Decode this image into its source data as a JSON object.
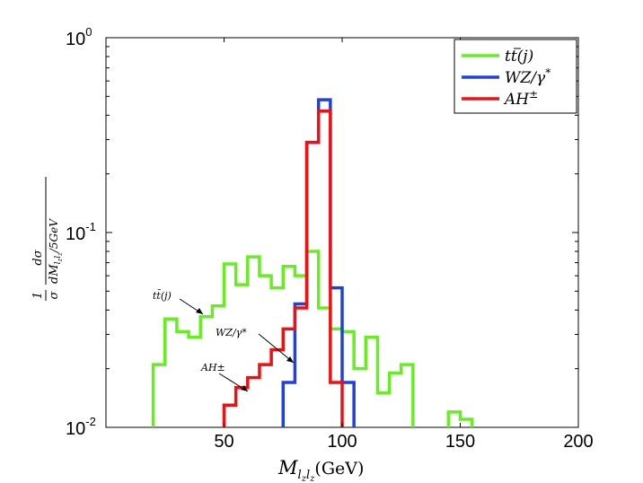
{
  "chart_data": {
    "type": "line",
    "style": "step-histogram",
    "xlabel": "M_{l_z l_z}(GeV)",
    "xlabel_main": "M",
    "xlabel_sub": "l",
    "xlabel_subsub": "z",
    "xlabel_sub2": "l",
    "xlabel_subsub2": "z",
    "xlabel_unit": "(GeV)",
    "ylabel": "1/σ dσ/dM_{l_z l_z}/5GeV",
    "ylabel_one": "1",
    "ylabel_sigma": "σ",
    "ylabel_num": "dσ",
    "ylabel_den": "dM",
    "ylabel_den_sub": "l",
    "ylabel_den_subsub": "z",
    "ylabel_den_sub2": "l",
    "ylabel_den_subsub2": "z",
    "ylabel_den_tail": "/5GeV",
    "xlim": [
      0,
      200
    ],
    "ylim": [
      0.01,
      1
    ],
    "yscale": "log",
    "x_ticks": [
      {
        "value": 50,
        "label": "50"
      },
      {
        "value": 100,
        "label": "100"
      },
      {
        "value": 150,
        "label": "150"
      },
      {
        "value": 200,
        "label": "200"
      }
    ],
    "y_ticks": [
      {
        "value": 1,
        "base": "10",
        "exp": "0"
      },
      {
        "value": 0.1,
        "base": "10",
        "exp": "-1"
      },
      {
        "value": 0.01,
        "base": "10",
        "exp": "-2"
      }
    ],
    "legend_position": "top-right",
    "series": [
      {
        "name": "tt̄(j)",
        "color": "#66ee22",
        "bins": [
          [
            20,
            25,
            0.021
          ],
          [
            25,
            30,
            0.036
          ],
          [
            30,
            35,
            0.031
          ],
          [
            35,
            40,
            0.029
          ],
          [
            40,
            45,
            0.037
          ],
          [
            45,
            50,
            0.042
          ],
          [
            50,
            55,
            0.069
          ],
          [
            55,
            60,
            0.054
          ],
          [
            60,
            65,
            0.075
          ],
          [
            65,
            70,
            0.06
          ],
          [
            70,
            75,
            0.052
          ],
          [
            75,
            80,
            0.067
          ],
          [
            80,
            85,
            0.06
          ],
          [
            85,
            90,
            0.08
          ],
          [
            90,
            95,
            0.041
          ],
          [
            95,
            100,
            0.032
          ],
          [
            100,
            105,
            0.031
          ],
          [
            105,
            110,
            0.02
          ],
          [
            110,
            115,
            0.029
          ],
          [
            115,
            120,
            0.015
          ],
          [
            120,
            125,
            0.019
          ],
          [
            125,
            130,
            0.021
          ],
          [
            145,
            150,
            0.012
          ],
          [
            150,
            155,
            0.011
          ]
        ]
      },
      {
        "name": "WZ/γ*",
        "color": "#2040e0",
        "bins": [
          [
            75,
            80,
            0.017
          ],
          [
            80,
            85,
            0.043
          ],
          [
            85,
            90,
            0.29
          ],
          [
            90,
            95,
            0.48
          ],
          [
            95,
            100,
            0.052
          ],
          [
            100,
            105,
            0.017
          ]
        ]
      },
      {
        "name": "AH±",
        "color": "#ee1111",
        "bins": [
          [
            50,
            55,
            0.013
          ],
          [
            55,
            60,
            0.016
          ],
          [
            60,
            65,
            0.018
          ],
          [
            65,
            70,
            0.021
          ],
          [
            70,
            75,
            0.025
          ],
          [
            75,
            80,
            0.032
          ],
          [
            80,
            85,
            0.041
          ],
          [
            85,
            90,
            0.29
          ],
          [
            90,
            95,
            0.42
          ],
          [
            95,
            100,
            0.017
          ]
        ]
      }
    ],
    "legend": [
      {
        "label_main": "tt",
        "label_suffix": "(j)",
        "series": 0
      },
      {
        "label_main": "WZ/γ",
        "label_suffix": "*",
        "series": 1
      },
      {
        "label_main": "AH",
        "label_suffix": "±",
        "series": 2
      }
    ],
    "annotations": [
      {
        "text": "tt̄(j)",
        "series": 0
      },
      {
        "text": "WZ/γ*",
        "series": 1
      },
      {
        "text": "AH±",
        "series": 2
      }
    ]
  }
}
